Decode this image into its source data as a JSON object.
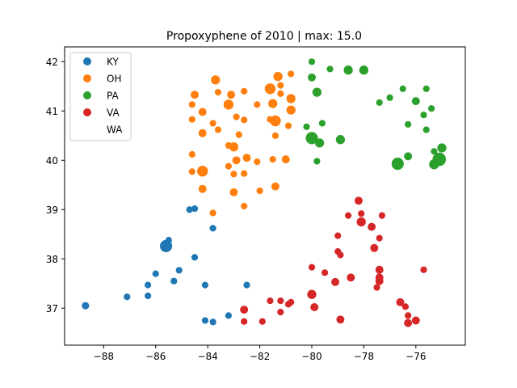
{
  "chart_data": {
    "type": "scatter",
    "title": "Propoxyphene of 2010 | max: 15.0",
    "xlabel": "",
    "ylabel": "",
    "xlim": [
      -89.5,
      -74.1
    ],
    "ylim": [
      36.25,
      42.3
    ],
    "x_ticks": [
      -88,
      -86,
      -84,
      -82,
      -80,
      -78,
      -76
    ],
    "x_tick_labels": [
      "−88",
      "−86",
      "−84",
      "−82",
      "−80",
      "−78",
      "−76"
    ],
    "y_ticks": [
      37,
      38,
      39,
      40,
      41,
      42
    ],
    "y_tick_labels": [
      "37",
      "38",
      "39",
      "40",
      "41",
      "42"
    ],
    "grid": false,
    "legend_placement": "top-left",
    "size_max_value": 15.0,
    "series": [
      {
        "name": "KY",
        "color": "#1f77b4",
        "points": [
          [
            -88.7,
            37.05,
            1.5
          ],
          [
            -87.1,
            37.23,
            1
          ],
          [
            -86.3,
            37.25,
            1
          ],
          [
            -86.3,
            37.47,
            1
          ],
          [
            -86.0,
            37.7,
            1
          ],
          [
            -85.6,
            38.26,
            7
          ],
          [
            -85.5,
            38.38,
            1
          ],
          [
            -85.3,
            37.55,
            1
          ],
          [
            -85.1,
            37.77,
            1
          ],
          [
            -84.7,
            39.0,
            1
          ],
          [
            -84.5,
            39.02,
            1
          ],
          [
            -84.5,
            38.03,
            1
          ],
          [
            -84.1,
            37.47,
            1
          ],
          [
            -84.1,
            36.75,
            1
          ],
          [
            -83.8,
            38.62,
            1
          ],
          [
            -83.8,
            36.72,
            1
          ],
          [
            -83.2,
            36.85,
            1
          ],
          [
            -82.5,
            37.47,
            1
          ]
        ]
      },
      {
        "name": "OH",
        "color": "#ff7f0e",
        "points": [
          [
            -84.5,
            41.33,
            2
          ],
          [
            -84.6,
            41.13,
            1
          ],
          [
            -84.6,
            40.83,
            1
          ],
          [
            -84.2,
            40.98,
            2
          ],
          [
            -84.2,
            40.55,
            2
          ],
          [
            -84.6,
            40.12,
            1
          ],
          [
            -84.6,
            39.77,
            1
          ],
          [
            -84.2,
            39.78,
            5
          ],
          [
            -84.2,
            39.42,
            2
          ],
          [
            -83.8,
            38.93,
            1
          ],
          [
            -83.7,
            41.63,
            3
          ],
          [
            -83.6,
            41.38,
            1
          ],
          [
            -83.8,
            40.75,
            1
          ],
          [
            -83.6,
            40.62,
            1
          ],
          [
            -83.2,
            40.3,
            1
          ],
          [
            -83.2,
            41.13,
            4
          ],
          [
            -83.1,
            41.33,
            2
          ],
          [
            -82.9,
            40.88,
            1
          ],
          [
            -83.0,
            40.27,
            3
          ],
          [
            -82.9,
            40.0,
            2
          ],
          [
            -83.0,
            39.72,
            1
          ],
          [
            -83.0,
            39.35,
            2
          ],
          [
            -83.2,
            39.88,
            1
          ],
          [
            -82.6,
            41.4,
            1
          ],
          [
            -82.6,
            40.82,
            1
          ],
          [
            -82.5,
            40.05,
            2
          ],
          [
            -82.6,
            39.73,
            1
          ],
          [
            -82.6,
            39.07,
            1
          ],
          [
            -82.8,
            40.52,
            1
          ],
          [
            -82.1,
            41.13,
            1
          ],
          [
            -82.1,
            39.97,
            1
          ],
          [
            -82.0,
            39.38,
            1
          ],
          [
            -81.6,
            41.45,
            5
          ],
          [
            -81.5,
            41.15,
            3
          ],
          [
            -81.6,
            40.83,
            1
          ],
          [
            -81.4,
            40.8,
            5
          ],
          [
            -81.3,
            41.7,
            3
          ],
          [
            -81.4,
            40.5,
            1
          ],
          [
            -81.2,
            41.52,
            1
          ],
          [
            -81.2,
            41.35,
            1
          ],
          [
            -81.5,
            40.02,
            1
          ],
          [
            -81.4,
            39.47,
            2
          ],
          [
            -80.8,
            41.75,
            1
          ],
          [
            -80.8,
            41.25,
            3
          ],
          [
            -80.8,
            41.02,
            3
          ],
          [
            -80.9,
            40.7,
            1
          ],
          [
            -81.0,
            40.02,
            2
          ]
        ]
      },
      {
        "name": "PA",
        "color": "#2ca02c",
        "points": [
          [
            -80.0,
            42.0,
            1
          ],
          [
            -80.0,
            41.68,
            2
          ],
          [
            -79.8,
            41.38,
            3
          ],
          [
            -80.2,
            40.68,
            1
          ],
          [
            -80.0,
            40.45,
            7
          ],
          [
            -79.6,
            40.75,
            1
          ],
          [
            -79.7,
            40.35,
            3
          ],
          [
            -79.8,
            39.98,
            1
          ],
          [
            -79.3,
            41.85,
            1
          ],
          [
            -78.6,
            41.83,
            3
          ],
          [
            -78.0,
            41.83,
            3
          ],
          [
            -78.9,
            40.42,
            3
          ],
          [
            -77.4,
            41.17,
            1
          ],
          [
            -77.0,
            41.27,
            1
          ],
          [
            -76.5,
            41.45,
            1
          ],
          [
            -76.0,
            41.2,
            2
          ],
          [
            -75.6,
            41.45,
            1
          ],
          [
            -75.4,
            41.05,
            1
          ],
          [
            -75.7,
            40.92,
            1
          ],
          [
            -76.3,
            40.73,
            1
          ],
          [
            -75.6,
            40.62,
            1
          ],
          [
            -76.7,
            39.93,
            7
          ],
          [
            -76.3,
            40.08,
            2
          ],
          [
            -75.3,
            39.92,
            4
          ],
          [
            -75.1,
            40.02,
            9
          ],
          [
            -75.3,
            40.18,
            1
          ],
          [
            -75.0,
            40.25,
            3
          ]
        ]
      },
      {
        "name": "VA",
        "color": "#d62728",
        "points": [
          [
            -78.2,
            39.18,
            2
          ],
          [
            -78.1,
            38.92,
            1
          ],
          [
            -78.6,
            38.88,
            1
          ],
          [
            -78.1,
            38.75,
            3
          ],
          [
            -77.7,
            38.65,
            2
          ],
          [
            -77.3,
            38.88,
            1
          ],
          [
            -77.4,
            38.42,
            1
          ],
          [
            -77.6,
            38.22,
            2
          ],
          [
            -79.0,
            38.47,
            1
          ],
          [
            -80.0,
            37.83,
            1
          ],
          [
            -79.0,
            38.15,
            1
          ],
          [
            -78.9,
            38.08,
            1
          ],
          [
            -79.5,
            37.72,
            1
          ],
          [
            -79.1,
            37.53,
            2
          ],
          [
            -78.5,
            37.62,
            2
          ],
          [
            -77.4,
            37.78,
            2
          ],
          [
            -77.4,
            37.62,
            2
          ],
          [
            -77.4,
            37.55,
            2
          ],
          [
            -77.5,
            37.42,
            1
          ],
          [
            -75.7,
            37.78,
            1
          ],
          [
            -80.0,
            37.28,
            3
          ],
          [
            -79.9,
            37.02,
            2
          ],
          [
            -80.8,
            37.12,
            1
          ],
          [
            -80.9,
            37.08,
            1
          ],
          [
            -81.2,
            37.15,
            1
          ],
          [
            -81.6,
            37.15,
            1
          ],
          [
            -81.2,
            36.92,
            1
          ],
          [
            -82.6,
            36.97,
            2
          ],
          [
            -82.6,
            36.73,
            1
          ],
          [
            -81.9,
            36.73,
            1
          ],
          [
            -78.9,
            36.77,
            2
          ],
          [
            -76.6,
            37.12,
            2
          ],
          [
            -76.4,
            37.03,
            1
          ],
          [
            -76.3,
            36.85,
            1
          ],
          [
            -76.0,
            36.75,
            2
          ],
          [
            -76.3,
            36.7,
            2
          ]
        ]
      },
      {
        "name": "WA",
        "color": "#9467bd",
        "points": []
      }
    ]
  }
}
